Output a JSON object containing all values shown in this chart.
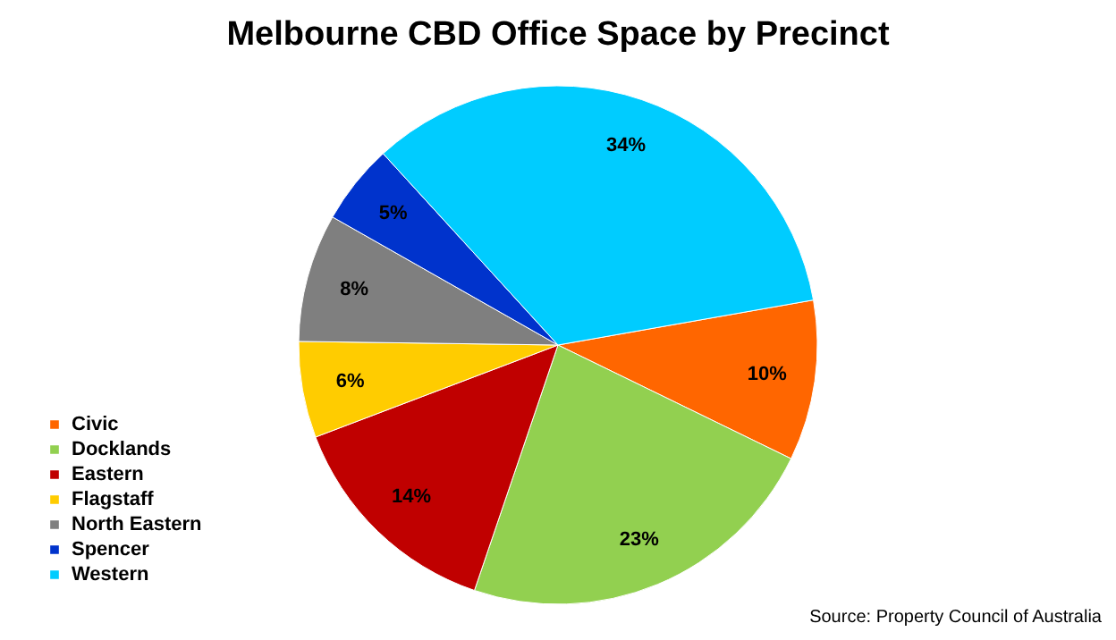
{
  "chart_data": {
    "type": "pie",
    "title": "Melbourne CBD Office Space by Precinct",
    "categories": [
      "Civic",
      "Docklands",
      "Eastern",
      "Flagstaff",
      "North Eastern",
      "Spencer",
      "Western"
    ],
    "values": [
      10,
      23,
      14,
      6,
      8,
      5,
      34
    ],
    "colors": [
      "#ff6600",
      "#92d050",
      "#c00000",
      "#ffcc00",
      "#7f7f7f",
      "#0033cc",
      "#00ccff"
    ],
    "value_labels": [
      "10%",
      "23%",
      "14%",
      "6%",
      "8%",
      "5%",
      "34%"
    ],
    "legend": "left",
    "annotations": [
      "Source: Property Council of Australia"
    ]
  }
}
